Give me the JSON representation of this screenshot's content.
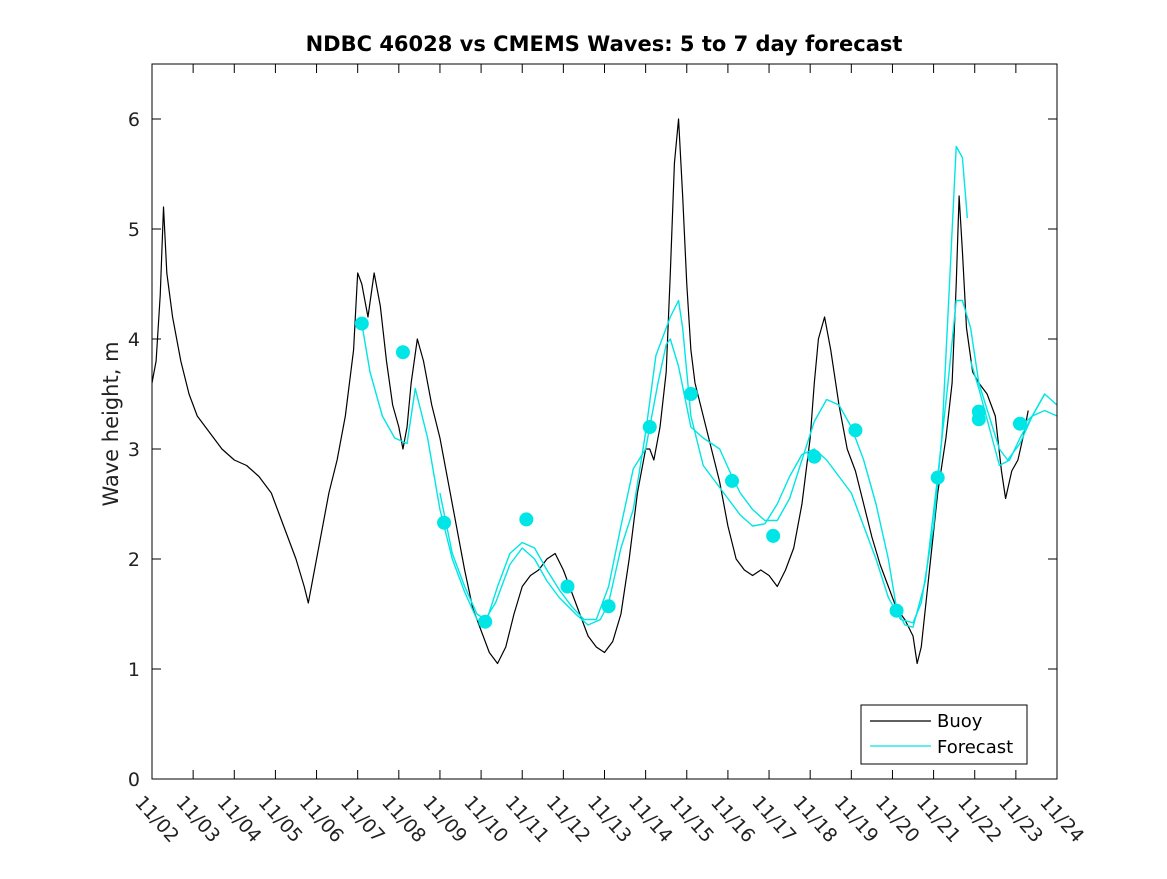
{
  "chart_data": {
    "type": "line",
    "title": "NDBC 46028 vs CMEMS Waves: 5 to 7 day forecast",
    "xlabel": "",
    "ylabel": "Wave height, m",
    "xlim": [
      0,
      22
    ],
    "ylim": [
      0,
      6.5
    ],
    "grid": false,
    "legend_position": "bottom-right",
    "x_tick_labels": [
      "11/02",
      "11/03",
      "11/04",
      "11/05",
      "11/06",
      "11/07",
      "11/08",
      "11/09",
      "11/10",
      "11/11",
      "11/12",
      "11/13",
      "11/14",
      "11/15",
      "11/16",
      "11/17",
      "11/18",
      "11/19",
      "11/20",
      "11/21",
      "11/22",
      "11/23",
      "11/24"
    ],
    "y_ticks": [
      0,
      1,
      2,
      3,
      4,
      5,
      6
    ],
    "series": [
      {
        "name": "Buoy",
        "color": "#000000",
        "points": [
          [
            0.0,
            3.6
          ],
          [
            0.1,
            3.8
          ],
          [
            0.2,
            4.4
          ],
          [
            0.28,
            5.2
          ],
          [
            0.36,
            4.6
          ],
          [
            0.5,
            4.2
          ],
          [
            0.7,
            3.8
          ],
          [
            0.9,
            3.5
          ],
          [
            1.1,
            3.3
          ],
          [
            1.3,
            3.2
          ],
          [
            1.5,
            3.1
          ],
          [
            1.7,
            3.0
          ],
          [
            2.0,
            2.9
          ],
          [
            2.3,
            2.85
          ],
          [
            2.6,
            2.75
          ],
          [
            2.9,
            2.6
          ],
          [
            3.1,
            2.4
          ],
          [
            3.3,
            2.2
          ],
          [
            3.5,
            2.0
          ],
          [
            3.7,
            1.75
          ],
          [
            3.8,
            1.6
          ],
          [
            3.9,
            1.8
          ],
          [
            4.1,
            2.2
          ],
          [
            4.3,
            2.6
          ],
          [
            4.5,
            2.9
          ],
          [
            4.7,
            3.3
          ],
          [
            4.9,
            3.9
          ],
          [
            5.0,
            4.6
          ],
          [
            5.1,
            4.5
          ],
          [
            5.25,
            4.2
          ],
          [
            5.4,
            4.6
          ],
          [
            5.55,
            4.3
          ],
          [
            5.7,
            3.8
          ],
          [
            5.85,
            3.4
          ],
          [
            6.0,
            3.2
          ],
          [
            6.1,
            3.0
          ],
          [
            6.2,
            3.2
          ],
          [
            6.3,
            3.6
          ],
          [
            6.45,
            4.0
          ],
          [
            6.6,
            3.8
          ],
          [
            6.8,
            3.4
          ],
          [
            7.0,
            3.1
          ],
          [
            7.2,
            2.7
          ],
          [
            7.4,
            2.3
          ],
          [
            7.6,
            1.9
          ],
          [
            7.8,
            1.55
          ],
          [
            8.0,
            1.35
          ],
          [
            8.2,
            1.15
          ],
          [
            8.4,
            1.05
          ],
          [
            8.6,
            1.2
          ],
          [
            8.8,
            1.5
          ],
          [
            9.0,
            1.75
          ],
          [
            9.2,
            1.85
          ],
          [
            9.4,
            1.9
          ],
          [
            9.6,
            2.0
          ],
          [
            9.8,
            2.05
          ],
          [
            10.0,
            1.9
          ],
          [
            10.2,
            1.7
          ],
          [
            10.4,
            1.5
          ],
          [
            10.6,
            1.3
          ],
          [
            10.8,
            1.2
          ],
          [
            11.0,
            1.15
          ],
          [
            11.2,
            1.25
          ],
          [
            11.4,
            1.5
          ],
          [
            11.6,
            2.0
          ],
          [
            11.8,
            2.6
          ],
          [
            12.0,
            3.0
          ],
          [
            12.1,
            3.0
          ],
          [
            12.2,
            2.9
          ],
          [
            12.35,
            3.2
          ],
          [
            12.5,
            3.7
          ],
          [
            12.6,
            4.6
          ],
          [
            12.7,
            5.6
          ],
          [
            12.8,
            6.0
          ],
          [
            12.9,
            5.3
          ],
          [
            13.0,
            4.5
          ],
          [
            13.1,
            3.9
          ],
          [
            13.2,
            3.6
          ],
          [
            13.4,
            3.3
          ],
          [
            13.6,
            3.0
          ],
          [
            13.8,
            2.7
          ],
          [
            14.0,
            2.3
          ],
          [
            14.2,
            2.0
          ],
          [
            14.4,
            1.9
          ],
          [
            14.6,
            1.85
          ],
          [
            14.8,
            1.9
          ],
          [
            15.0,
            1.85
          ],
          [
            15.2,
            1.75
          ],
          [
            15.4,
            1.9
          ],
          [
            15.6,
            2.1
          ],
          [
            15.8,
            2.5
          ],
          [
            16.0,
            3.1
          ],
          [
            16.1,
            3.6
          ],
          [
            16.2,
            4.0
          ],
          [
            16.35,
            4.2
          ],
          [
            16.5,
            3.9
          ],
          [
            16.7,
            3.4
          ],
          [
            16.9,
            3.0
          ],
          [
            17.1,
            2.8
          ],
          [
            17.3,
            2.5
          ],
          [
            17.5,
            2.2
          ],
          [
            17.7,
            1.95
          ],
          [
            17.9,
            1.75
          ],
          [
            18.1,
            1.55
          ],
          [
            18.3,
            1.45
          ],
          [
            18.5,
            1.3
          ],
          [
            18.6,
            1.05
          ],
          [
            18.7,
            1.2
          ],
          [
            18.9,
            1.9
          ],
          [
            19.1,
            2.6
          ],
          [
            19.3,
            3.1
          ],
          [
            19.45,
            3.6
          ],
          [
            19.55,
            4.5
          ],
          [
            19.62,
            5.3
          ],
          [
            19.7,
            4.8
          ],
          [
            19.8,
            4.1
          ],
          [
            19.95,
            3.7
          ],
          [
            20.1,
            3.6
          ],
          [
            20.3,
            3.5
          ],
          [
            20.5,
            3.3
          ],
          [
            20.65,
            2.8
          ],
          [
            20.75,
            2.55
          ],
          [
            20.9,
            2.8
          ],
          [
            21.05,
            2.9
          ],
          [
            21.2,
            3.15
          ],
          [
            21.3,
            3.35
          ]
        ]
      },
      {
        "name": "Forecast",
        "color": "#00e5e5",
        "points": [
          [
            5.1,
            4.14
          ],
          [
            5.3,
            3.7
          ],
          [
            5.6,
            3.3
          ],
          [
            5.9,
            3.1
          ],
          [
            6.2,
            3.05
          ],
          [
            6.4,
            3.55
          ],
          [
            6.7,
            3.1
          ],
          [
            7.0,
            2.45
          ],
          [
            7.3,
            2.0
          ],
          [
            7.6,
            1.7
          ],
          [
            7.9,
            1.45
          ],
          [
            8.1,
            1.4
          ],
          [
            8.4,
            1.75
          ],
          [
            8.7,
            2.05
          ],
          [
            9.0,
            2.15
          ],
          [
            9.3,
            2.1
          ],
          [
            9.6,
            1.9
          ],
          [
            9.9,
            1.72
          ],
          [
            10.2,
            1.57
          ],
          [
            10.5,
            1.45
          ],
          [
            10.8,
            1.45
          ],
          [
            11.1,
            1.75
          ],
          [
            11.4,
            2.3
          ],
          [
            11.7,
            2.82
          ],
          [
            12.0,
            3.0
          ],
          [
            12.3,
            3.6
          ],
          [
            12.5,
            3.95
          ],
          [
            12.6,
            4.0
          ],
          [
            12.8,
            3.75
          ],
          [
            13.1,
            3.2
          ],
          [
            13.4,
            3.1
          ],
          [
            13.8,
            3.0
          ],
          [
            14.1,
            2.75
          ],
          [
            14.3,
            2.6
          ],
          [
            14.6,
            2.45
          ],
          [
            14.9,
            2.35
          ],
          [
            15.2,
            2.35
          ],
          [
            15.5,
            2.55
          ],
          [
            15.8,
            2.9
          ],
          [
            16.1,
            3.25
          ],
          [
            16.4,
            3.45
          ],
          [
            16.7,
            3.4
          ],
          [
            17.0,
            3.2
          ],
          [
            17.3,
            2.9
          ],
          [
            17.6,
            2.5
          ],
          [
            17.9,
            2.0
          ],
          [
            18.1,
            1.55
          ],
          [
            18.3,
            1.4
          ],
          [
            18.5,
            1.38
          ],
          [
            18.8,
            1.8
          ],
          [
            19.1,
            2.75
          ],
          [
            19.35,
            3.6
          ],
          [
            19.55,
            4.35
          ],
          [
            19.7,
            4.35
          ],
          [
            19.9,
            4.1
          ],
          [
            20.1,
            3.6
          ],
          [
            20.35,
            3.3
          ],
          [
            20.6,
            3.0
          ],
          [
            20.8,
            2.9
          ],
          [
            21.1,
            3.05
          ],
          [
            21.4,
            3.3
          ],
          [
            21.7,
            3.5
          ],
          [
            22.0,
            3.4
          ]
        ]
      },
      {
        "name": "",
        "color": "#00e5e5",
        "points": [
          [
            7.0,
            2.6
          ],
          [
            7.3,
            2.05
          ],
          [
            7.6,
            1.75
          ],
          [
            7.9,
            1.5
          ],
          [
            8.1,
            1.45
          ],
          [
            8.35,
            1.6
          ],
          [
            8.7,
            1.95
          ],
          [
            9.0,
            2.1
          ],
          [
            9.3,
            2.0
          ],
          [
            9.6,
            1.8
          ],
          [
            9.9,
            1.65
          ],
          [
            10.3,
            1.5
          ],
          [
            10.6,
            1.4
          ],
          [
            10.9,
            1.45
          ],
          [
            11.1,
            1.6
          ],
          [
            11.4,
            2.1
          ],
          [
            11.7,
            2.45
          ],
          [
            12.0,
            3.15
          ],
          [
            12.25,
            3.85
          ],
          [
            12.4,
            4.0
          ],
          [
            12.6,
            4.2
          ],
          [
            12.8,
            4.35
          ],
          [
            12.9,
            4.1
          ],
          [
            13.1,
            3.3
          ],
          [
            13.4,
            2.85
          ],
          [
            13.7,
            2.7
          ],
          [
            14.0,
            2.55
          ],
          [
            14.3,
            2.4
          ],
          [
            14.6,
            2.3
          ],
          [
            14.9,
            2.32
          ],
          [
            15.2,
            2.5
          ],
          [
            15.5,
            2.75
          ],
          [
            15.8,
            2.95
          ],
          [
            16.1,
            3.0
          ],
          [
            16.4,
            2.9
          ],
          [
            16.7,
            2.75
          ],
          [
            17.0,
            2.6
          ],
          [
            17.3,
            2.3
          ],
          [
            17.6,
            2.0
          ],
          [
            17.9,
            1.65
          ],
          [
            18.2,
            1.45
          ],
          [
            18.5,
            1.42
          ],
          [
            18.7,
            1.6
          ],
          [
            19.0,
            2.3
          ],
          [
            19.2,
            3.1
          ],
          [
            19.4,
            4.6
          ],
          [
            19.55,
            5.75
          ],
          [
            19.7,
            5.65
          ],
          [
            19.82,
            5.1
          ]
        ]
      },
      {
        "name": "",
        "color": "#00e5e5",
        "points": [
          [
            19.9,
            3.8
          ],
          [
            20.1,
            3.55
          ],
          [
            20.35,
            3.2
          ],
          [
            20.6,
            2.85
          ],
          [
            20.85,
            2.9
          ],
          [
            21.1,
            3.1
          ],
          [
            21.4,
            3.3
          ],
          [
            21.7,
            3.5
          ]
        ]
      },
      {
        "name": "",
        "color": "#00e5e5",
        "points": [
          [
            21.1,
            3.2
          ],
          [
            21.4,
            3.3
          ],
          [
            21.7,
            3.35
          ],
          [
            22.0,
            3.3
          ]
        ]
      }
    ],
    "markers": {
      "name": "Forecast markers",
      "color": "#00e5e5",
      "points": [
        [
          5.1,
          4.14
        ],
        [
          6.1,
          3.88
        ],
        [
          7.1,
          2.33
        ],
        [
          8.1,
          1.43
        ],
        [
          9.1,
          2.36
        ],
        [
          10.1,
          1.75
        ],
        [
          11.1,
          1.57
        ],
        [
          12.1,
          3.2
        ],
        [
          13.1,
          3.5
        ],
        [
          14.1,
          2.71
        ],
        [
          15.1,
          2.21
        ],
        [
          16.1,
          2.93
        ],
        [
          17.1,
          3.17
        ],
        [
          18.1,
          1.53
        ],
        [
          19.1,
          2.74
        ],
        [
          20.1,
          3.27
        ],
        [
          20.1,
          3.34
        ],
        [
          21.1,
          3.23
        ]
      ]
    }
  }
}
